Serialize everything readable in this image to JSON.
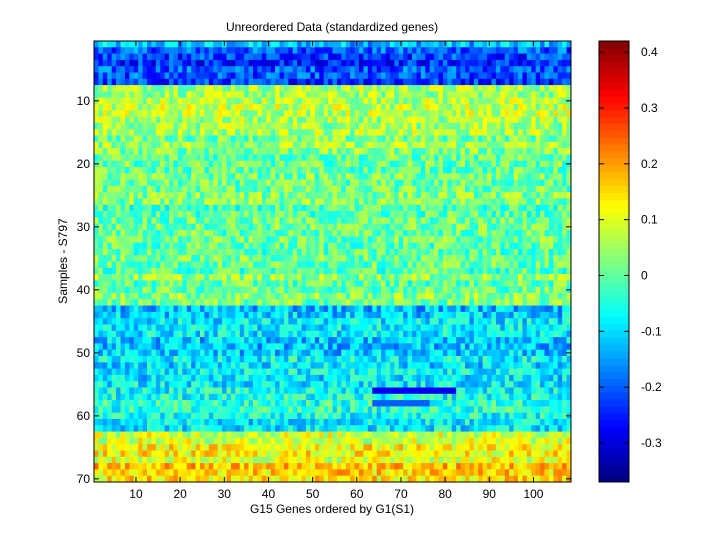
{
  "chart_data": {
    "type": "heatmap",
    "title": "Unreordered Data (standardized genes)",
    "xlabel": "G15 Genes ordered by G1(S1)",
    "ylabel": "Samples - S797",
    "x_ticks": [
      10,
      20,
      30,
      40,
      50,
      60,
      70,
      80,
      90,
      100
    ],
    "y_ticks": [
      10,
      20,
      30,
      40,
      50,
      60,
      70
    ],
    "xlim": [
      0.5,
      108.5
    ],
    "ylim": [
      0.5,
      70.5
    ],
    "n_cols": 108,
    "n_rows": 70,
    "colormap": "jet",
    "clim": [
      -0.37,
      0.42
    ],
    "colorbar_ticks": [
      -0.3,
      -0.2,
      -0.1,
      0,
      0.1,
      0.2,
      0.3,
      0.4
    ],
    "colorbar_tick_labels": [
      "-0.3",
      "-0.2",
      "-0.1",
      "0",
      "0.1",
      "0.2",
      "0.3",
      "0.4"
    ],
    "row_band_means": [
      {
        "rows": [
          1,
          1
        ],
        "value": -0.13
      },
      {
        "rows": [
          2,
          7
        ],
        "value": -0.22
      },
      {
        "rows": [
          8,
          12
        ],
        "value": 0.08
      },
      {
        "rows": [
          13,
          20
        ],
        "value": 0.03
      },
      {
        "rows": [
          21,
          28
        ],
        "value": 0.0
      },
      {
        "rows": [
          29,
          42
        ],
        "value": 0.02
      },
      {
        "rows": [
          43,
          54
        ],
        "value": -0.1
      },
      {
        "rows": [
          55,
          62
        ],
        "value": -0.06
      },
      {
        "rows": [
          63,
          67
        ],
        "value": 0.1
      },
      {
        "rows": [
          68,
          70
        ],
        "value": 0.15
      }
    ],
    "features": [
      {
        "rows": [
          56,
          56
        ],
        "cols": [
          64,
          82
        ],
        "value": -0.28
      },
      {
        "rows": [
          58,
          58
        ],
        "cols": [
          64,
          76
        ],
        "value": -0.2
      }
    ]
  }
}
